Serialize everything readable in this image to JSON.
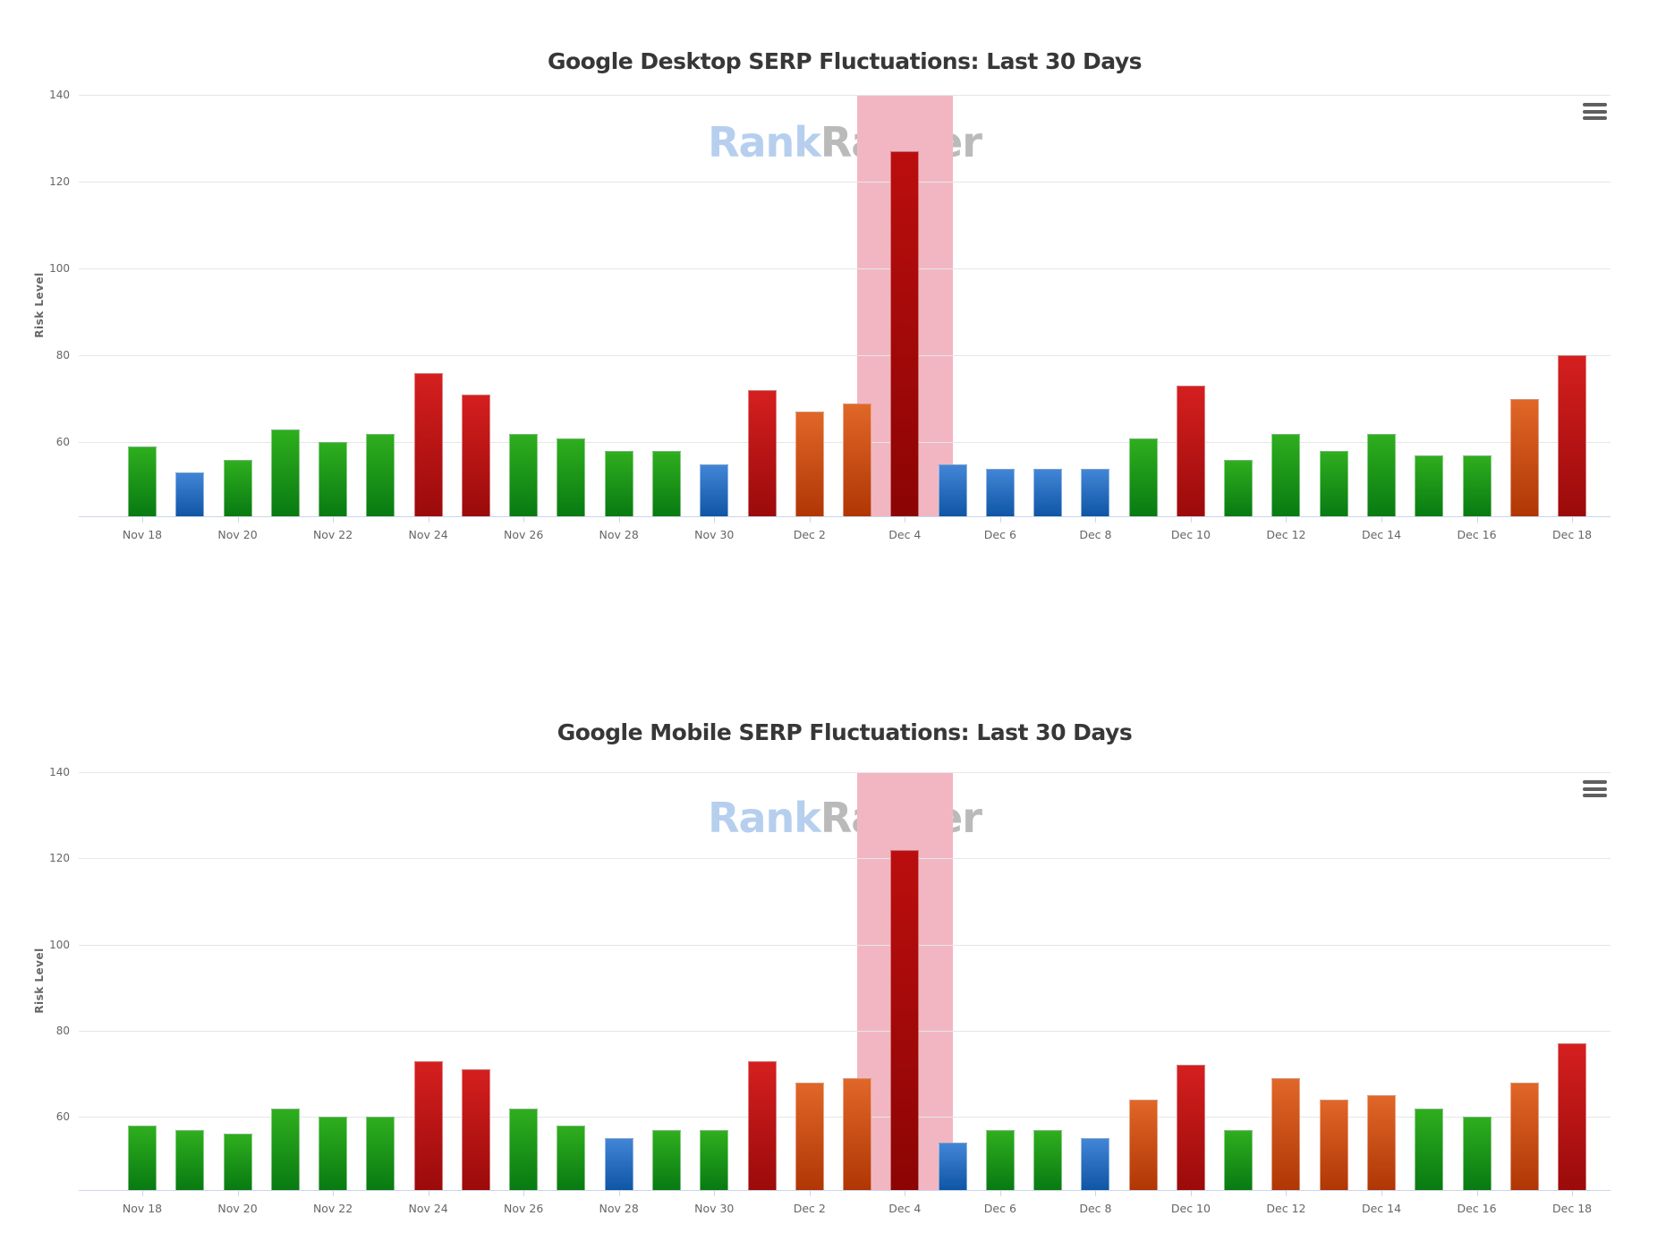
{
  "watermark": {
    "part1": "Rank",
    "part2": "Ranger"
  },
  "palette": {
    "green": {
      "top": "#2fae1e",
      "bottom": "#087a12"
    },
    "blue": {
      "top": "#4285d6",
      "bottom": "#0f56a5"
    },
    "red": {
      "top": "#d51f1f",
      "bottom": "#9b0a0a"
    },
    "darkred": {
      "top": "#bb0e0e",
      "bottom": "#8c0404"
    },
    "orange": {
      "top": "#e06728",
      "bottom": "#b03605"
    },
    "plot_band": "#f2b6c2",
    "gridline": "#e6e6e6",
    "axis_line": "#ccd6eb",
    "label_color": "#666666",
    "title_color": "#373737"
  },
  "chart_data": [
    {
      "type": "bar",
      "title": "Google Desktop SERP Fluctuations: Last 30 Days",
      "ylabel": "Risk Level",
      "ymin": 43,
      "ymax": 140,
      "y_ticks": [
        140,
        120,
        100,
        80,
        60
      ],
      "grid": true,
      "legend": "none",
      "context_menu_icon": "hamburger",
      "categories": [
        "Nov 18",
        "Nov 19",
        "Nov 20",
        "Nov 21",
        "Nov 22",
        "Nov 23",
        "Nov 24",
        "Nov 25",
        "Nov 26",
        "Nov 27",
        "Nov 28",
        "Nov 29",
        "Nov 30",
        "Dec 1",
        "Dec 2",
        "Dec 3",
        "Dec 4",
        "Dec 5",
        "Dec 6",
        "Dec 7",
        "Dec 8",
        "Dec 9",
        "Dec 10",
        "Dec 11",
        "Dec 12",
        "Dec 13",
        "Dec 14",
        "Dec 15",
        "Dec 16",
        "Dec 17",
        "Dec 18"
      ],
      "values": [
        59,
        53,
        56,
        63,
        60,
        62,
        76,
        71,
        62,
        61,
        58,
        58,
        55,
        72,
        67,
        69,
        127,
        55,
        54,
        54,
        54,
        61,
        73,
        56,
        62,
        58,
        62,
        57,
        57,
        70,
        80
      ],
      "colors": [
        "green",
        "blue",
        "green",
        "green",
        "green",
        "green",
        "red",
        "red",
        "green",
        "green",
        "green",
        "green",
        "blue",
        "red",
        "orange",
        "orange",
        "darkred",
        "blue",
        "blue",
        "blue",
        "blue",
        "green",
        "red",
        "green",
        "green",
        "green",
        "green",
        "green",
        "green",
        "orange",
        "red"
      ],
      "x_tick_labels": [
        "Nov 18",
        "Nov 20",
        "Nov 22",
        "Nov 24",
        "Nov 26",
        "Nov 28",
        "Nov 30",
        "Dec 2",
        "Dec 4",
        "Dec 6",
        "Dec 8",
        "Dec 10",
        "Dec 12",
        "Dec 14",
        "Dec 16",
        "Dec 18"
      ],
      "plot_band_category": "Dec 4"
    },
    {
      "type": "bar",
      "title": "Google Mobile SERP Fluctuations: Last 30 Days",
      "ylabel": "Risk Level",
      "ymin": 43,
      "ymax": 140,
      "y_ticks": [
        140,
        120,
        100,
        80,
        60
      ],
      "grid": true,
      "legend": "none",
      "context_menu_icon": "hamburger",
      "categories": [
        "Nov 18",
        "Nov 19",
        "Nov 20",
        "Nov 21",
        "Nov 22",
        "Nov 23",
        "Nov 24",
        "Nov 25",
        "Nov 26",
        "Nov 27",
        "Nov 28",
        "Nov 29",
        "Nov 30",
        "Dec 1",
        "Dec 2",
        "Dec 3",
        "Dec 4",
        "Dec 5",
        "Dec 6",
        "Dec 7",
        "Dec 8",
        "Dec 9",
        "Dec 10",
        "Dec 11",
        "Dec 12",
        "Dec 13",
        "Dec 14",
        "Dec 15",
        "Dec 16",
        "Dec 17",
        "Dec 18"
      ],
      "values": [
        58,
        57,
        56,
        62,
        60,
        60,
        73,
        71,
        62,
        58,
        55,
        57,
        57,
        73,
        68,
        69,
        122,
        54,
        57,
        57,
        55,
        64,
        72,
        57,
        69,
        64,
        65,
        62,
        60,
        68,
        77
      ],
      "colors": [
        "green",
        "green",
        "green",
        "green",
        "green",
        "green",
        "red",
        "red",
        "green",
        "green",
        "blue",
        "green",
        "green",
        "red",
        "orange",
        "orange",
        "darkred",
        "blue",
        "green",
        "green",
        "blue",
        "orange",
        "red",
        "green",
        "orange",
        "orange",
        "orange",
        "green",
        "green",
        "orange",
        "red"
      ],
      "x_tick_labels": [
        "Nov 18",
        "Nov 20",
        "Nov 22",
        "Nov 24",
        "Nov 26",
        "Nov 28",
        "Nov 30",
        "Dec 2",
        "Dec 4",
        "Dec 6",
        "Dec 8",
        "Dec 10",
        "Dec 12",
        "Dec 14",
        "Dec 16",
        "Dec 18"
      ],
      "plot_band_category": "Dec 4"
    }
  ]
}
